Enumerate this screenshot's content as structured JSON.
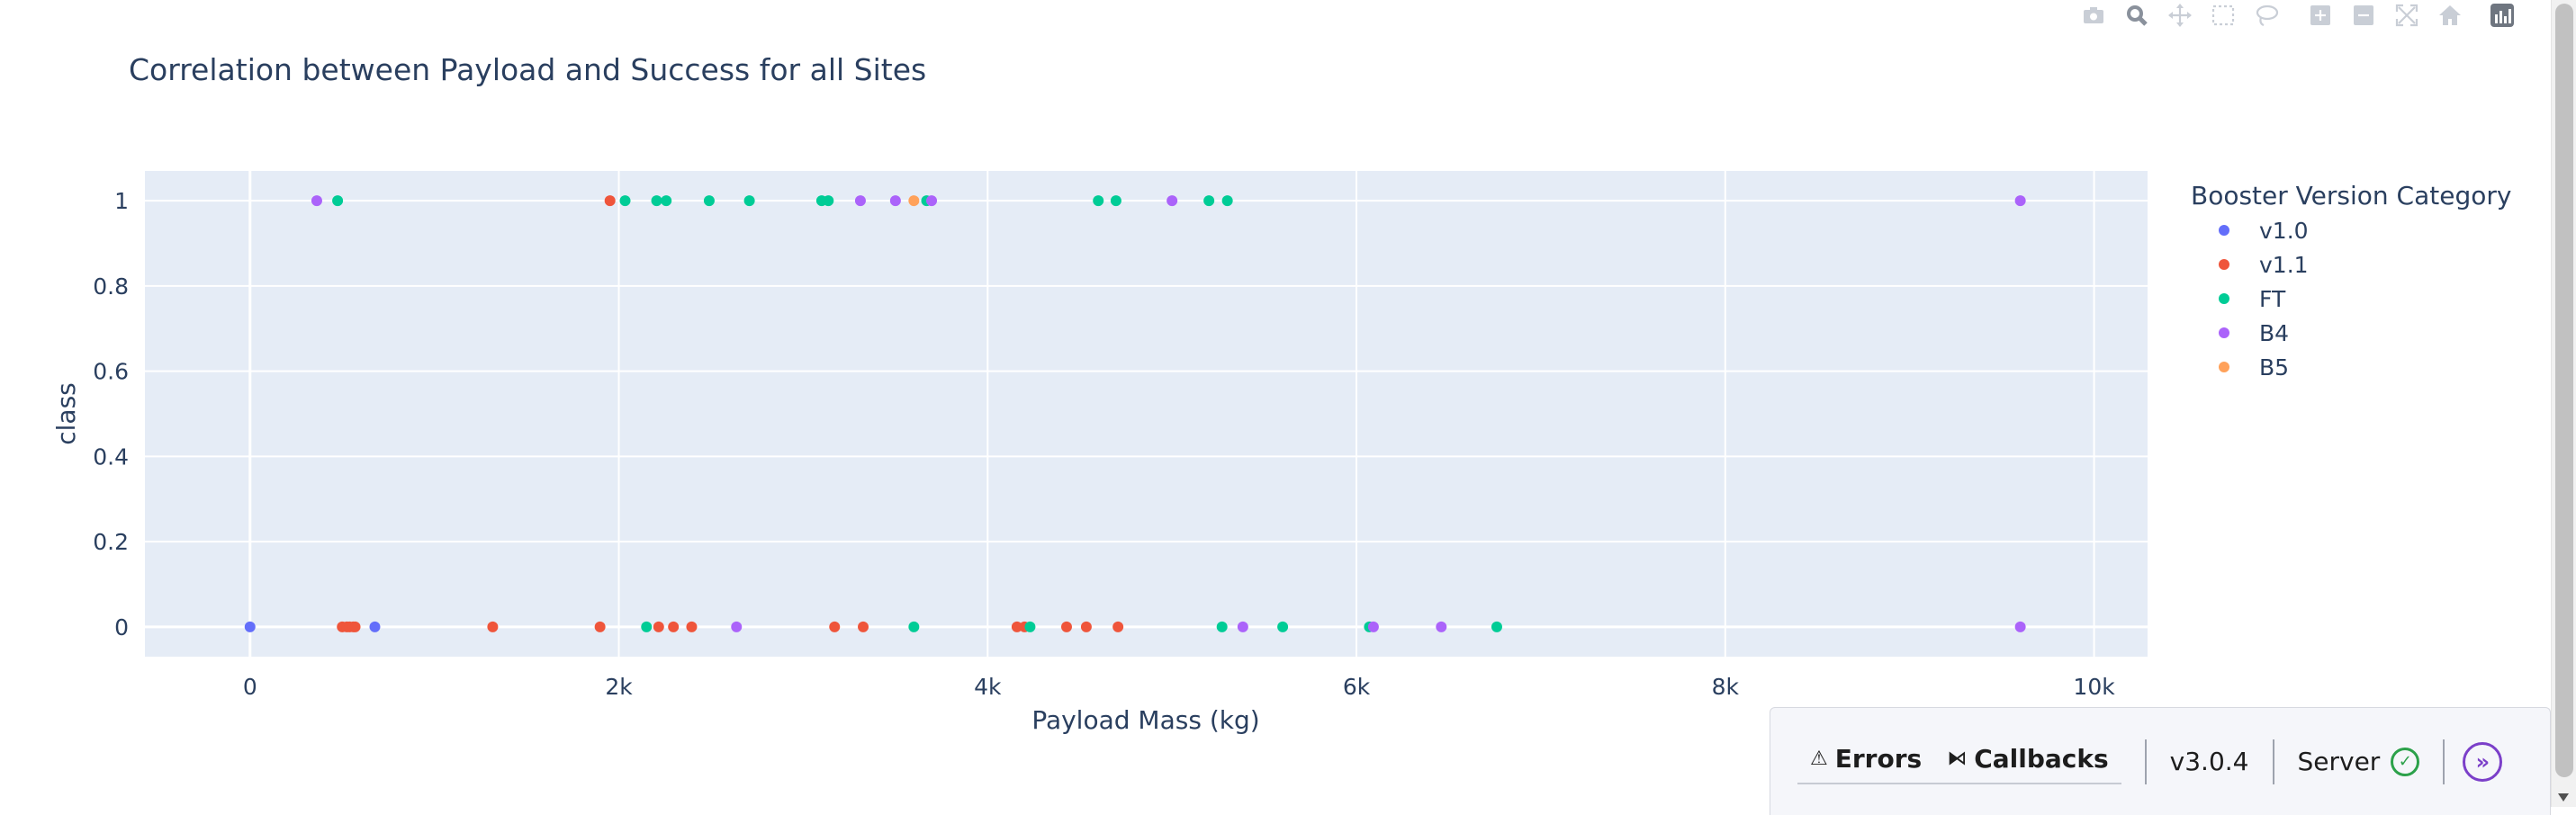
{
  "chart_data": {
    "type": "scatter",
    "title": "Correlation between Payload and Success for all Sites",
    "xlabel": "Payload Mass (kg)",
    "ylabel": "class",
    "xlim": [
      -570,
      10290
    ],
    "ylim": [
      -0.07,
      1.07
    ],
    "xticks": [
      0,
      2000,
      4000,
      6000,
      8000,
      10000
    ],
    "xtick_labels": [
      "0",
      "2k",
      "4k",
      "6k",
      "8k",
      "10k"
    ],
    "yticks": [
      0,
      0.2,
      0.4,
      0.6,
      0.8,
      1
    ],
    "ytick_labels": [
      "0",
      "0.2",
      "0.4",
      "0.6",
      "0.8",
      "1"
    ],
    "grid": true,
    "legend_position": "right",
    "legend_title": "Booster Version Category",
    "series": [
      {
        "name": "v1.0",
        "color": "#636efa",
        "points": [
          [
            0,
            0
          ],
          [
            677,
            0
          ]
        ]
      },
      {
        "name": "v1.1",
        "color": "#ef553b",
        "points": [
          [
            1952,
            1
          ],
          [
            500,
            0
          ],
          [
            525,
            0
          ],
          [
            540,
            0
          ],
          [
            560,
            0
          ],
          [
            570,
            0
          ],
          [
            1316,
            0
          ],
          [
            1898,
            0
          ],
          [
            2216,
            0
          ],
          [
            2296,
            0
          ],
          [
            2395,
            0
          ],
          [
            3170,
            0
          ],
          [
            3325,
            0
          ],
          [
            4159,
            0
          ],
          [
            4200,
            0
          ],
          [
            4428,
            0
          ],
          [
            4535,
            0
          ],
          [
            4707,
            0
          ]
        ]
      },
      {
        "name": "FT",
        "color": "#00cc96",
        "points": [
          [
            475,
            1
          ],
          [
            2034,
            1
          ],
          [
            2205,
            1
          ],
          [
            2257,
            1
          ],
          [
            2490,
            1
          ],
          [
            2708,
            1
          ],
          [
            3100,
            1
          ],
          [
            3136,
            1
          ],
          [
            3669,
            1
          ],
          [
            4600,
            1
          ],
          [
            4696,
            1
          ],
          [
            5200,
            1
          ],
          [
            5300,
            1
          ],
          [
            2150,
            0
          ],
          [
            3600,
            0
          ],
          [
            4230,
            0
          ],
          [
            5271,
            0
          ],
          [
            5600,
            0
          ],
          [
            6070,
            0
          ],
          [
            6761,
            0
          ]
        ]
      },
      {
        "name": "B4",
        "color": "#ab63fa",
        "points": [
          [
            362,
            1
          ],
          [
            3310,
            1
          ],
          [
            3500,
            1
          ],
          [
            3696,
            1
          ],
          [
            5000,
            1
          ],
          [
            9600,
            1
          ],
          [
            2638,
            0
          ],
          [
            5384,
            0
          ],
          [
            6092,
            0
          ],
          [
            6460,
            0
          ],
          [
            9600,
            0
          ]
        ]
      },
      {
        "name": "B5",
        "color": "#ffa15a",
        "points": [
          [
            3600,
            1
          ]
        ]
      }
    ]
  },
  "modebar": {
    "buttons": [
      "camera-icon",
      "zoom-icon",
      "pan-icon",
      "box-select-icon",
      "lasso-icon",
      "zoom-in-icon",
      "zoom-out-icon",
      "autoscale-icon",
      "reset-axes-icon",
      "plotly-logo-icon"
    ]
  },
  "dash_panel": {
    "errors_label": "Errors",
    "callbacks_label": "Callbacks",
    "version": "v3.0.4",
    "server_label": "Server"
  }
}
